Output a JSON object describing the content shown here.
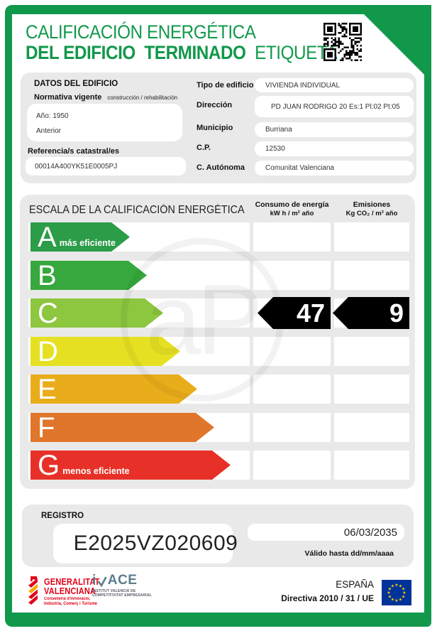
{
  "colors": {
    "brand_green": "#12984B",
    "panel_gray": "#E9E9E9",
    "bar_black": "#000000",
    "eu_blue": "#003399",
    "eu_star": "#FFCC00",
    "gva_red": "#E2001A",
    "ivace_slate": "#5E7D8C"
  },
  "header": {
    "title_line1": "CALIFICACIÓN ENERGÉTICA",
    "title_line2": "DEL EDIFICIO  TERMINADO",
    "title_line2_suffix": "ETIQUETA"
  },
  "building": {
    "section_title": "DATOS DEL EDIFICIO",
    "normativa_label": "Normativa vigente",
    "normativa_sub": "construcción / rehabilitación",
    "normativa_value_line1": "Año: 1950",
    "normativa_value_line2": "Anterior",
    "referencia_label": "Referencia/s catastral/es",
    "referencia_value": "00014A400YK51E0005PJ",
    "fields": [
      {
        "label": "Tipo de edificio",
        "value": "VIVIENDA INDIVIDUAL"
      },
      {
        "label": "Dirección",
        "value": "PD JUAN RODRIGO 20 Es:1 Pl:02 Pt:05"
      },
      {
        "label": "Municipio",
        "value": "Burriana"
      },
      {
        "label": "C.P.",
        "value": "12530"
      },
      {
        "label": "C. Autónoma",
        "value": "Comunitat Valenciana"
      }
    ]
  },
  "scale": {
    "title": "ESCALA DE LA CALIFICACIÓN ENERGÉTICA",
    "consumo_header": "Consumo de energía",
    "consumo_units": "kW h / m² año",
    "emisiones_header": "Emisiones",
    "emisiones_units": "Kg CO₂ / m² año",
    "ratings": [
      {
        "letter": "A",
        "note": "más eficiente",
        "color": "#2B9C47"
      },
      {
        "letter": "B",
        "note": "",
        "color": "#36A83D"
      },
      {
        "letter": "C",
        "note": "",
        "color": "#8DC63F"
      },
      {
        "letter": "D",
        "note": "",
        "color": "#E5E122"
      },
      {
        "letter": "E",
        "note": "",
        "color": "#E9AD1B"
      },
      {
        "letter": "F",
        "note": "",
        "color": "#E0762B"
      },
      {
        "letter": "G",
        "note": "menos eficiente",
        "color": "#E73128"
      }
    ],
    "result": {
      "letter": "C",
      "consumo": "47",
      "emisiones": "9"
    },
    "watermark_text": "aP"
  },
  "registro": {
    "title": "REGISTRO",
    "code": "E2025VZ020609",
    "valid_until_date": "06/03/2035",
    "valid_until_label": "Válido hasta dd/mm/aaaa"
  },
  "footer": {
    "gva_line1": "GENERALITAT",
    "gva_line2": "VALENCIANA",
    "gva_sub1": "Conselleria d'Innovació,",
    "gva_sub2": "Indústria, Comerç i Turisme",
    "ivace_pre": "i",
    "ivace_post": "ACE",
    "ivace_sub1": "INSTITUT VALENCIÀ DE",
    "ivace_sub2": "COMPETITIVITAT EMPRESARIAL",
    "country": "ESPAÑA",
    "directive": "Directiva 2010 / 31 / UE"
  }
}
